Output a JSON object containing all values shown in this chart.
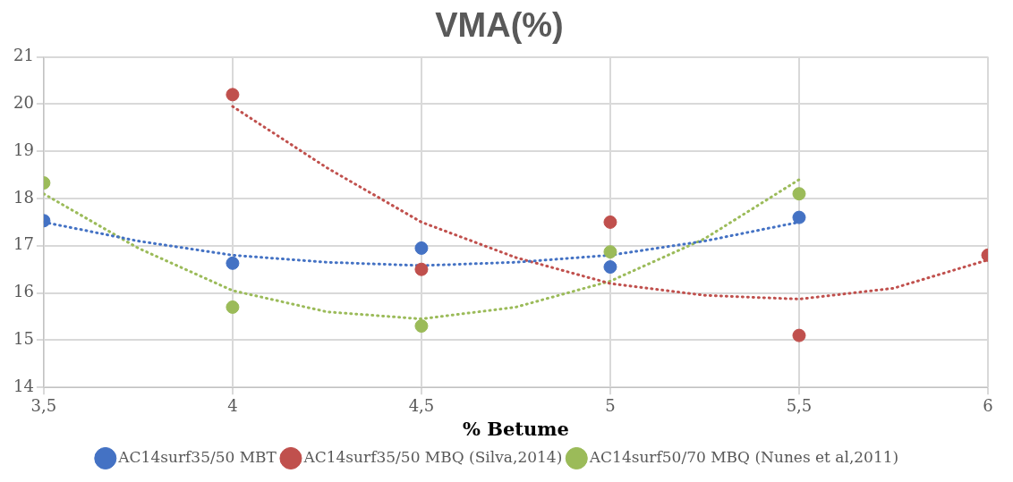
{
  "chart_data": {
    "type": "scatter",
    "title": "VMA(%)",
    "xlabel": "% Betume",
    "xlim": [
      3.5,
      6
    ],
    "xticks": [
      {
        "value": 3.5,
        "label": "3,5"
      },
      4,
      {
        "value": 4.5,
        "label": "4,5"
      },
      5,
      {
        "value": 5.5,
        "label": "5,5"
      },
      6
    ],
    "ylim": [
      14,
      21
    ],
    "yticks": [
      14,
      15,
      16,
      17,
      18,
      19,
      20,
      21
    ],
    "grid": true,
    "legend": "bottom",
    "marker": "circle",
    "series": [
      {
        "name": "AC14surf35/50 MBT",
        "color": "#4472c4",
        "x": [
          3.5,
          4,
          4.5,
          5,
          5.5
        ],
        "values": [
          17.53,
          16.63,
          16.95,
          16.55,
          17.6
        ]
      },
      {
        "name": "AC14surf35/50 MBQ (Silva,2014)",
        "color": "#c0504d",
        "x": [
          4,
          4.5,
          5,
          5.5,
          6
        ],
        "values": [
          20.2,
          16.5,
          17.5,
          15.1,
          16.8
        ]
      },
      {
        "name": "AC14surf50/70 MBQ (Nunes et al,2011)",
        "color": "#9bbb59",
        "x": [
          3.5,
          4,
          4.5,
          5,
          5.5
        ],
        "values": [
          18.33,
          15.7,
          15.3,
          16.87,
          18.1
        ]
      },
      {
        "type": "line",
        "color": "#4472c4",
        "marker": "none",
        "line_style": "dotted",
        "x": [
          3.5,
          3.75,
          4,
          4.25,
          4.5,
          4.75,
          5,
          5.25,
          5.5
        ],
        "values": [
          17.5,
          17.1,
          16.8,
          16.65,
          16.58,
          16.65,
          16.8,
          17.1,
          17.5
        ]
      },
      {
        "type": "line",
        "color": "#c0504d",
        "marker": "none",
        "line_style": "dotted",
        "x": [
          4,
          4.25,
          4.5,
          4.75,
          5,
          5.25,
          5.5,
          5.75,
          6
        ],
        "values": [
          19.95,
          18.65,
          17.5,
          16.75,
          16.2,
          15.95,
          15.87,
          16.1,
          16.7
        ]
      },
      {
        "type": "line",
        "color": "#9bbb59",
        "marker": "none",
        "line_style": "dotted",
        "x": [
          3.5,
          3.75,
          4,
          4.25,
          4.5,
          4.75,
          5,
          5.25,
          5.5
        ],
        "values": [
          18.1,
          16.95,
          16.05,
          15.6,
          15.45,
          15.7,
          16.25,
          17.15,
          18.4
        ]
      }
    ]
  }
}
